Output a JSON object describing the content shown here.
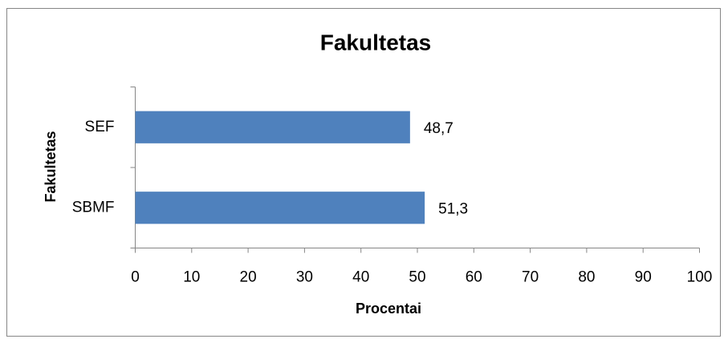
{
  "chart_data": {
    "type": "bar",
    "orientation": "horizontal",
    "title": "Fakultetas",
    "x_label": "Procentai",
    "y_label": "Fakultetas",
    "categories": [
      "SBMF",
      "SEF"
    ],
    "values": [
      51.3,
      48.7
    ],
    "value_labels": [
      "51,3",
      "48,7"
    ],
    "color": "#4f81bd",
    "xlim": [
      0,
      100
    ],
    "xticks": [
      0,
      10,
      20,
      30,
      40,
      50,
      60,
      70,
      80,
      90,
      100
    ],
    "grid": false
  }
}
